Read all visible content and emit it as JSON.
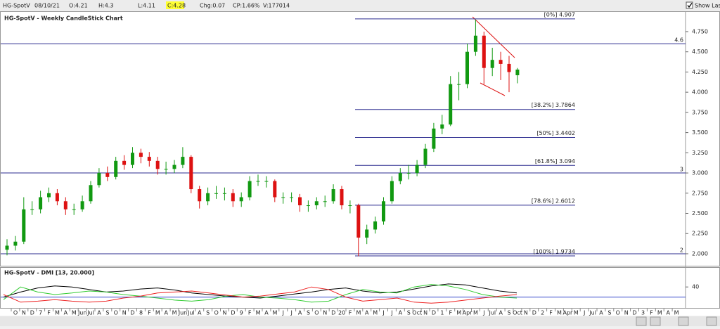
{
  "header": {
    "symbol": "HG-SpotV",
    "date": "08/10/21",
    "open": "O:4.21",
    "high": "H:4.3",
    "low": "L:4.11",
    "close": "C:4.28",
    "change": "Chg:0.07",
    "change_pct": "CP:1.66%",
    "volume": "V:177014",
    "show_last": "Show Last"
  },
  "xaxis": {
    "labels": [
      "O",
      "N",
      "D",
      "7",
      "F",
      "M",
      "A",
      "M",
      "Jun",
      "Jul",
      "A",
      "S",
      "O",
      "N",
      "D",
      "8",
      "F",
      "M",
      "A",
      "M",
      "Jun",
      "Jul",
      "A",
      "S",
      "O",
      "N",
      "D",
      "9",
      "F",
      "M",
      "A",
      "M",
      "J",
      "J",
      "A",
      "S",
      "O",
      "N",
      "D",
      "20",
      "F",
      "M",
      "A",
      "M",
      "J",
      "J",
      "A",
      "S",
      "Oct",
      "N",
      "D",
      "1",
      "F",
      "M",
      "Apr",
      "M",
      "J",
      "Jul",
      "A",
      "S",
      "Oct",
      "N",
      "D",
      "2",
      "F",
      "M",
      "Apr",
      "M",
      "J",
      "Jul",
      "A",
      "S",
      "O",
      "N",
      "D",
      "3",
      "F",
      "M",
      "A",
      "M"
    ]
  },
  "chart_data": [
    {
      "type": "candlestick",
      "title": "HG-SpotV - Weekly CandleStick Chart",
      "up_color": "#119911",
      "down_color": "#dd1111",
      "line_color": "#2b2b8f",
      "open": [
        2.05,
        2.1,
        2.15,
        2.55,
        2.55,
        2.7,
        2.75,
        2.65,
        2.55,
        2.55,
        2.65,
        2.85,
        3.0,
        2.95,
        3.15,
        3.1,
        3.25,
        3.2,
        3.15,
        3.05,
        3.05,
        3.1,
        3.2,
        2.8,
        2.65,
        2.75,
        2.75,
        2.75,
        2.65,
        2.7,
        2.9,
        2.9,
        2.9,
        2.7,
        2.7,
        2.7,
        2.6,
        2.6,
        2.65,
        2.65,
        2.8,
        2.6,
        2.6,
        2.2,
        2.3,
        2.4,
        2.65,
        2.9,
        3.0,
        3.0,
        3.1,
        3.3,
        3.55,
        3.6,
        4.1,
        4.1,
        4.5,
        4.7,
        4.3,
        4.4,
        4.35,
        4.21
      ],
      "high": [
        2.18,
        2.22,
        2.7,
        2.65,
        2.78,
        2.82,
        2.8,
        2.7,
        2.62,
        2.72,
        2.9,
        3.06,
        3.08,
        3.2,
        3.22,
        3.32,
        3.3,
        3.26,
        3.2,
        3.14,
        3.16,
        3.32,
        3.22,
        2.84,
        2.82,
        2.84,
        2.82,
        2.8,
        2.76,
        2.96,
        2.98,
        2.96,
        2.92,
        2.76,
        2.76,
        2.74,
        2.66,
        2.7,
        2.72,
        2.86,
        2.84,
        2.66,
        2.62,
        2.36,
        2.46,
        2.7,
        2.96,
        3.06,
        3.1,
        3.16,
        3.36,
        3.62,
        3.72,
        4.2,
        4.25,
        4.6,
        4.9,
        4.75,
        4.55,
        4.5,
        4.45,
        4.3
      ],
      "low": [
        1.98,
        2.04,
        2.12,
        2.48,
        2.5,
        2.64,
        2.6,
        2.48,
        2.48,
        2.52,
        2.62,
        2.82,
        2.9,
        2.92,
        3.04,
        3.06,
        3.12,
        3.08,
        2.98,
        2.98,
        3.0,
        3.06,
        2.75,
        2.56,
        2.6,
        2.68,
        2.66,
        2.58,
        2.58,
        2.66,
        2.84,
        2.82,
        2.64,
        2.62,
        2.64,
        2.52,
        2.52,
        2.55,
        2.58,
        2.62,
        2.55,
        2.5,
        1.97,
        2.12,
        2.25,
        2.36,
        2.62,
        2.86,
        2.92,
        2.96,
        3.06,
        3.26,
        3.48,
        3.58,
        3.9,
        4.05,
        4.45,
        4.1,
        4.2,
        4.15,
        4.0,
        4.11
      ],
      "close": [
        2.1,
        2.15,
        2.55,
        2.55,
        2.7,
        2.75,
        2.65,
        2.55,
        2.55,
        2.65,
        2.85,
        3.0,
        2.95,
        3.15,
        3.1,
        3.25,
        3.2,
        3.15,
        3.05,
        3.05,
        3.1,
        3.2,
        2.8,
        2.65,
        2.75,
        2.75,
        2.75,
        2.65,
        2.7,
        2.9,
        2.9,
        2.9,
        2.7,
        2.7,
        2.7,
        2.6,
        2.6,
        2.65,
        2.65,
        2.8,
        2.6,
        2.6,
        2.2,
        2.3,
        2.4,
        2.65,
        2.9,
        3.0,
        3.0,
        3.1,
        3.3,
        3.55,
        3.6,
        4.1,
        4.1,
        4.5,
        4.7,
        4.3,
        4.4,
        4.35,
        4.25,
        4.28
      ],
      "ylim": [
        1.85,
        4.99
      ],
      "yticks": [
        {
          "value": 2,
          "label": "2.000"
        },
        {
          "value": 2.25,
          "label": "2.250"
        },
        {
          "value": 2.5,
          "label": "2.500"
        },
        {
          "value": 2.75,
          "label": "2.750"
        },
        {
          "value": 3,
          "label": "3.000"
        },
        {
          "value": 3.25,
          "label": "3.250"
        },
        {
          "value": 3.5,
          "label": "3.500"
        },
        {
          "value": 3.75,
          "label": "3.750"
        },
        {
          "value": 4,
          "label": "4.000"
        },
        {
          "value": 4.25,
          "label": "4.250"
        },
        {
          "value": 4.5,
          "label": "4.500"
        },
        {
          "value": 4.75,
          "label": "4.750"
        }
      ],
      "levels": [
        4.6,
        3,
        2
      ],
      "fib": [
        {
          "value": 4.907,
          "label": "[0%] 4.907"
        },
        {
          "value": 3.7864,
          "label": "[38.2%] 3.7864"
        },
        {
          "value": 3.4402,
          "label": "[50%] 3.4402"
        },
        {
          "value": 3.094,
          "label": "[61.8%] 3.094"
        },
        {
          "value": 2.6012,
          "label": "[78.6%] 2.6012"
        },
        {
          "value": 1.9734,
          "label": "[100%] 1.9734"
        }
      ]
    },
    {
      "type": "line",
      "title": "HG-SpotV - DMI [13, 20.000]",
      "ylim": [
        0,
        75
      ],
      "yticks": [
        40
      ],
      "threshold": 20,
      "threshold_color": "#3344cc",
      "series": [
        {
          "color": "#000000",
          "values": [
            20,
            30,
            38,
            42,
            40,
            35,
            30,
            32,
            36,
            38,
            34,
            28,
            25,
            22,
            20,
            18,
            22,
            26,
            30,
            35,
            38,
            32,
            28,
            30,
            36,
            42,
            46,
            44,
            38,
            32,
            28
          ]
        },
        {
          "color": "#33cc33",
          "values": [
            15,
            40,
            30,
            25,
            28,
            32,
            30,
            25,
            22,
            18,
            14,
            12,
            15,
            22,
            25,
            20,
            18,
            15,
            10,
            12,
            25,
            35,
            30,
            28,
            40,
            45,
            42,
            35,
            25,
            20,
            18
          ]
        },
        {
          "color": "#ee2222",
          "values": [
            25,
            10,
            12,
            15,
            12,
            10,
            12,
            18,
            22,
            28,
            30,
            32,
            28,
            24,
            20,
            22,
            26,
            30,
            40,
            35,
            20,
            12,
            15,
            18,
            10,
            8,
            10,
            14,
            18,
            22,
            25
          ]
        }
      ]
    }
  ]
}
